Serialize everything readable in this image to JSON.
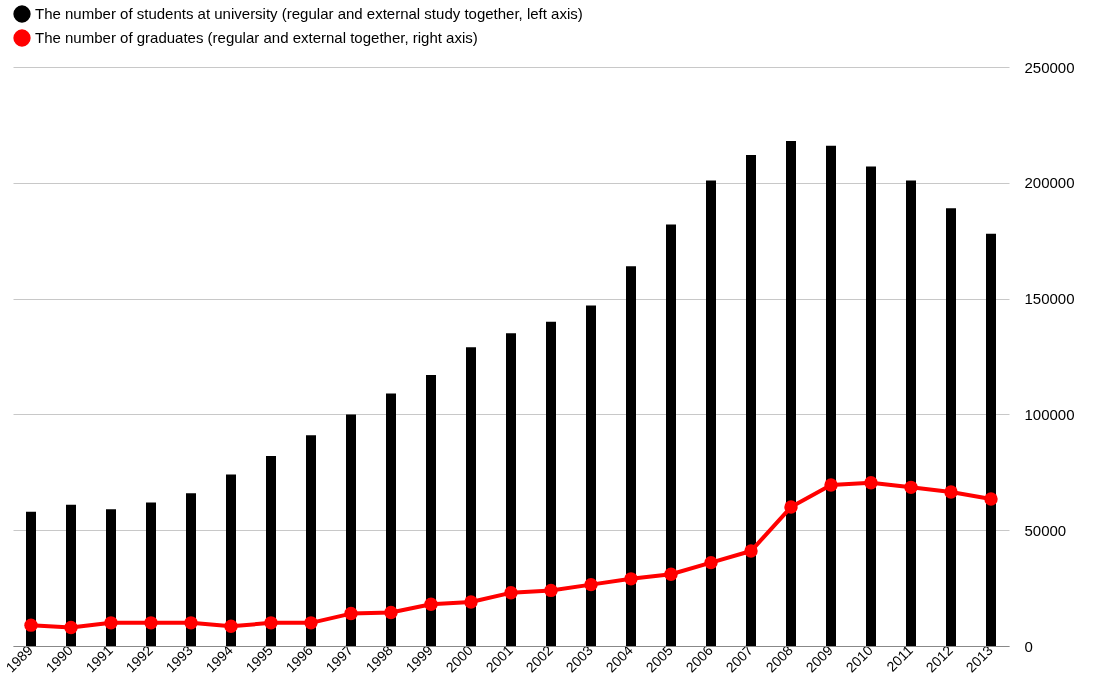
{
  "chart_data": {
    "type": "bar",
    "categories": [
      "1989",
      "1990",
      "1991",
      "1992",
      "1993",
      "1994",
      "1995",
      "1996",
      "1997",
      "1998",
      "1999",
      "2000",
      "2001",
      "2002",
      "2003",
      "2004",
      "2005",
      "2006",
      "2007",
      "2008",
      "2009",
      "2010",
      "2011",
      "2012",
      "2013"
    ],
    "series": [
      {
        "name": "The number of students at university (regular and external study together, left axis)",
        "color": "#000000",
        "values": [
          58000,
          61000,
          59000,
          62000,
          66000,
          74000,
          82000,
          91000,
          100000,
          109000,
          117000,
          129000,
          135000,
          140000,
          147000,
          164000,
          182000,
          201000,
          212000,
          218000,
          216000,
          207000,
          201000,
          189000,
          178000
        ]
      },
      {
        "name": "The number of graduates (regular and external together, right axis)",
        "color": "#ff0000",
        "type": "line",
        "marker": "circle",
        "values": [
          9000,
          8000,
          10000,
          10000,
          10000,
          8500,
          10000,
          10000,
          14000,
          14500,
          18000,
          19000,
          23000,
          24000,
          26500,
          29000,
          31000,
          36000,
          41000,
          60000,
          69500,
          70500,
          68500,
          66500,
          63500
        ]
      }
    ],
    "ylim": [
      0,
      250000
    ],
    "yticks": [
      0,
      50000,
      100000,
      150000,
      200000,
      250000
    ],
    "grid": "y",
    "legend": "top"
  }
}
